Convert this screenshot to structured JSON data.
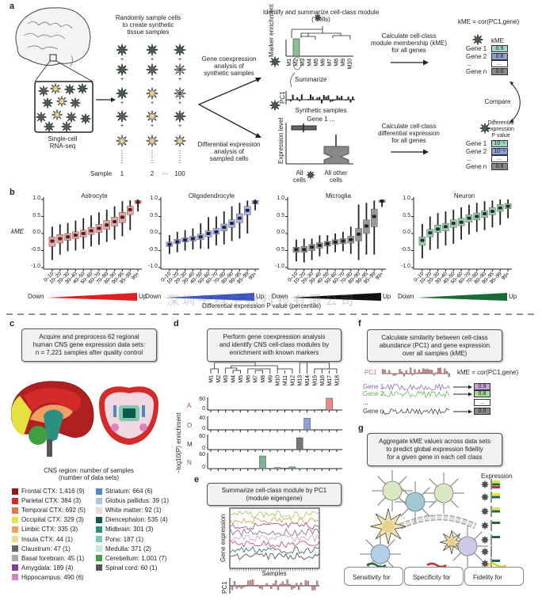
{
  "panel_labels": {
    "a": "a",
    "b": "b",
    "c": "c",
    "d": "d",
    "e": "e",
    "f": "f",
    "g": "g"
  },
  "panel_a": {
    "inset_label": [
      "Single-cell",
      "RNA-seq"
    ],
    "sample_title": [
      "Randomly sample cells",
      "to create synthetic",
      "tissue samples"
    ],
    "sample_row": {
      "label": "Sample",
      "s1": "1",
      "s2": "2",
      "dots": "···",
      "s3": "100"
    },
    "sample_columns": [
      [
        "astrocyte",
        "astrocyte",
        "astrocyte",
        "oligodendrocyte",
        "neuron"
      ],
      [
        "astrocyte",
        "oligodendrocyte",
        "neuron",
        "neuron",
        "neuron"
      ],
      [
        "astrocyte",
        "microglia",
        "microglia",
        "oligodendrocyte",
        "neuron"
      ]
    ],
    "coexpression_text": [
      "Gene coexpression",
      "analysis of",
      "synthetic samples"
    ],
    "diffexp_text": [
      "Differential expression",
      "analysis of",
      "sampled cells"
    ],
    "module_title": [
      "Identify and summarize cell-class module",
      "( cells)"
    ],
    "marker_ylabel": "Marker enrichment",
    "modules": [
      "M1",
      "M2",
      "M3",
      "M4",
      "M5",
      "M6",
      "M7",
      "M8",
      "M9",
      "M10"
    ],
    "summarize": "Summarize",
    "pc1_label": "PC1",
    "synthetic_samples": "Synthetic samples",
    "gene1": "Gene 1 ...",
    "expression_ylabel": "Expression level",
    "all_cells": [
      "All",
      "cells"
    ],
    "all_other": [
      "All other",
      "cells"
    ],
    "kme_calc": [
      "Calculate cell-class",
      "module membership (kME)",
      "for all genes"
    ],
    "de_calc": [
      "Calculate cell-class",
      "differential expression",
      "for all genes"
    ],
    "kme_formula": "kME = cor(PC1,gene)",
    "kme_header": "kME",
    "kme_table": [
      {
        "gene": "Gene 1",
        "value": "0.9",
        "color": "#9fd6cf"
      },
      {
        "gene": "Gene 2",
        "value": "0.8",
        "color": "#8f9fd6"
      },
      {
        "gene": "...",
        "value": "...",
        "color": "#ffffff"
      },
      {
        "gene": "Gene n",
        "value": "0.0",
        "color": "#888888"
      }
    ],
    "compare": "Compare",
    "de_header": [
      "Differential",
      "expression",
      "P value"
    ],
    "p_table": [
      {
        "gene": "Gene 1",
        "value": "10⁻⁵",
        "color": "#9fd6cf"
      },
      {
        "gene": "Gene 2",
        "value": "10⁻⁴",
        "color": "#8f9fd6"
      },
      {
        "gene": "...",
        "value": "...",
        "color": "#ffffff"
      },
      {
        "gene": "Gene n",
        "value": "0.9",
        "color": "#888888"
      }
    ]
  },
  "chart_data": [
    {
      "type": "box",
      "title": "Astrocyte",
      "ylabel": "kME",
      "ylim": [
        -1,
        1
      ],
      "yticks": [
        "1.0",
        "0.5",
        "0.0",
        "-0.5",
        "-1.0"
      ],
      "categories": [
        "0–10",
        "10–20",
        "20–30",
        "30–40",
        "40–50",
        "50–60",
        "60–70",
        "70–80",
        "80–90",
        "90–95",
        "95–99",
        "99+"
      ],
      "color": "#e8a3a3",
      "median_color": "#5a1a1a",
      "gradient": "#e02020",
      "median": [
        -0.22,
        -0.15,
        -0.1,
        -0.05,
        0,
        0.08,
        0.15,
        0.25,
        0.35,
        0.48,
        0.7,
        0.92
      ],
      "q1": [
        -0.38,
        -0.28,
        -0.2,
        -0.15,
        -0.1,
        -0.03,
        0.03,
        0.12,
        0.22,
        0.32,
        0.55,
        0.88
      ],
      "q3": [
        -0.1,
        -0.03,
        0.0,
        0.05,
        0.1,
        0.18,
        0.27,
        0.38,
        0.48,
        0.62,
        0.8,
        0.97
      ],
      "min": [
        -0.78,
        -0.62,
        -0.52,
        -0.5,
        -0.45,
        -0.38,
        -0.33,
        -0.25,
        -0.18,
        -0.08,
        0.1,
        0.65
      ],
      "max": [
        0.2,
        0.27,
        0.31,
        0.38,
        0.45,
        0.53,
        0.62,
        0.7,
        0.8,
        0.95,
        0.98,
        1.0
      ]
    },
    {
      "type": "box",
      "title": "Oligodendrocyte",
      "ylim": [
        -1,
        1
      ],
      "yticks": [
        "1.0",
        "0.5",
        "0.0",
        "-0.5",
        "-1.0"
      ],
      "categories": [
        "0–10",
        "10–20",
        "20–30",
        "30–40",
        "40–50",
        "50–60",
        "60–70",
        "70–80",
        "80–90",
        "90–95",
        "95–99",
        "99+"
      ],
      "color": "#aab5e2",
      "median_color": "#1a2050",
      "gradient": "#3a55c0",
      "median": [
        -0.32,
        -0.24,
        -0.19,
        -0.15,
        -0.1,
        0,
        0.05,
        0.18,
        0.3,
        0.45,
        0.68,
        0.92
      ],
      "q1": [
        -0.38,
        -0.3,
        -0.25,
        -0.22,
        -0.18,
        -0.1,
        -0.02,
        0.08,
        0.18,
        0.32,
        0.55,
        0.87
      ],
      "q3": [
        -0.25,
        -0.17,
        -0.12,
        -0.08,
        -0.02,
        0.08,
        0.15,
        0.28,
        0.4,
        0.58,
        0.8,
        0.97
      ],
      "min": [
        -0.6,
        -0.55,
        -0.5,
        -0.47,
        -0.45,
        -0.45,
        -0.35,
        -0.32,
        -0.22,
        -0.15,
        0.0,
        0.68
      ],
      "max": [
        -0.05,
        0.05,
        0.1,
        0.15,
        0.3,
        0.48,
        0.5,
        0.65,
        0.8,
        0.9,
        0.97,
        1.0
      ]
    },
    {
      "type": "box",
      "title": "Microglia",
      "ylim": [
        -1,
        1
      ],
      "yticks": [
        "1.0",
        "0.5",
        "0.0",
        "-0.5",
        "-1.0"
      ],
      "categories": [
        "0–10",
        "10–20",
        "20–30",
        "30–40",
        "40–50",
        "50–60",
        "60–70",
        "70–80",
        "80–90",
        "90–95",
        "95–99",
        "99+"
      ],
      "color": "#9a9a9a",
      "median_color": "#222222",
      "gradient": "#111111",
      "median": [
        -0.47,
        -0.47,
        -0.4,
        -0.35,
        -0.3,
        -0.25,
        -0.22,
        -0.18,
        -0.02,
        0.22,
        0.5,
        0.95
      ],
      "q1": [
        -0.55,
        -0.55,
        -0.5,
        -0.43,
        -0.37,
        -0.32,
        -0.3,
        -0.28,
        -0.22,
        0.0,
        0.2,
        0.92
      ],
      "q3": [
        -0.4,
        -0.38,
        -0.32,
        -0.27,
        -0.23,
        -0.18,
        -0.15,
        -0.08,
        0.15,
        0.4,
        0.72,
        0.98
      ],
      "min": [
        -0.82,
        -0.85,
        -0.78,
        -0.67,
        -0.6,
        -0.55,
        -0.52,
        -0.6,
        -0.78,
        -0.62,
        -0.62,
        0.78
      ],
      "max": [
        -0.18,
        -0.15,
        -0.15,
        -0.05,
        -0.05,
        0.0,
        0.05,
        0.2,
        0.85,
        0.9,
        0.97,
        1.0
      ]
    },
    {
      "type": "box",
      "title": "Neuron",
      "ylim": [
        -1,
        1
      ],
      "yticks": [
        "1.0",
        "0.5",
        "0.0",
        "-0.5",
        "-1.0"
      ],
      "categories": [
        "0–10",
        "10–20",
        "20–30",
        "30–40",
        "40–50",
        "50–60",
        "60–70",
        "70–80",
        "80–90",
        "90–95",
        "95–99",
        "99+"
      ],
      "color": "#9fcbb0",
      "median_color": "#123a24",
      "gradient": "#1a6a3a",
      "median": [
        -0.2,
        0.02,
        0.13,
        0.2,
        0.3,
        0.33,
        0.45,
        0.5,
        0.58,
        0.65,
        0.75,
        0.8
      ],
      "q1": [
        -0.35,
        -0.1,
        0.03,
        0.08,
        0.18,
        0.23,
        0.33,
        0.4,
        0.47,
        0.55,
        0.65,
        0.73
      ],
      "q3": [
        -0.1,
        0.12,
        0.25,
        0.3,
        0.4,
        0.45,
        0.55,
        0.6,
        0.67,
        0.76,
        0.85,
        0.88
      ],
      "min": [
        -0.73,
        -0.48,
        -0.45,
        -0.35,
        -0.3,
        -0.18,
        -0.03,
        0.05,
        0.1,
        0.18,
        0.25,
        0.45
      ],
      "max": [
        0.28,
        0.5,
        0.6,
        0.65,
        0.7,
        0.77,
        0.85,
        0.9,
        0.95,
        0.97,
        1.0,
        1.0
      ]
    },
    {
      "type": "bar",
      "panel": "d",
      "ylabel": "−log10(P) enrichment",
      "categories": [
        "M1",
        "M2",
        "M3",
        "M4",
        "M5",
        "M6",
        "M7",
        "M8",
        "M9",
        "M10",
        "M11",
        "M12",
        "M13",
        "M14",
        "M15",
        "M16",
        "M17",
        "M18"
      ],
      "series": [
        {
          "name": "A",
          "color": "#e88a8a",
          "ymax": 60,
          "yticks": [
            "60",
            "0"
          ],
          "values": [
            0,
            0,
            0,
            0,
            0,
            0,
            0,
            0,
            0,
            0,
            0,
            0,
            0,
            0,
            0,
            3,
            75,
            0
          ]
        },
        {
          "name": "O",
          "color": "#8fa0d8",
          "ymax": 40,
          "yticks": [
            "40",
            "0"
          ],
          "values": [
            0,
            0,
            0,
            0,
            0,
            1,
            0,
            0,
            0,
            0,
            0,
            0,
            1,
            45,
            0,
            0,
            0,
            0
          ]
        },
        {
          "name": "M",
          "color": "#777777",
          "ymax": 60,
          "yticks": [
            "60",
            "0"
          ],
          "values": [
            0,
            0,
            0,
            0,
            0,
            0,
            0,
            0,
            0,
            0,
            0,
            0,
            60,
            2,
            0,
            0,
            0,
            0
          ]
        },
        {
          "name": "N",
          "color": "#7fb08f",
          "ymax": 60,
          "yticks": [
            "60",
            "0"
          ],
          "values": [
            1,
            0,
            0,
            0,
            1,
            0,
            0,
            60,
            0,
            5,
            3,
            8,
            1,
            0,
            0,
            0,
            0,
            0
          ]
        }
      ]
    }
  ],
  "panel_b": {
    "down": "Down",
    "up": "Up",
    "xlabel": "Differential expression P value (percentile)"
  },
  "panel_c": {
    "box": [
      "Acquire and preprocess 62 regional",
      "human CNS gene expression data sets:",
      "n = 7,221 samples after quality control"
    ],
    "legend_title": [
      "CNS region: number of samples",
      "(number of data sets)"
    ],
    "legend": [
      {
        "label": "Frontal CTX: 1,416 (9)",
        "color": "#8b1a1a"
      },
      {
        "label": "Parietal CTX: 384 (3)",
        "color": "#d42a2a"
      },
      {
        "label": "Temporal CTX: 692 (5)",
        "color": "#e8724a"
      },
      {
        "label": "Occipital CTX: 329 (3)",
        "color": "#e6e040"
      },
      {
        "label": "Limbic CTX: 335 (3)",
        "color": "#f0a060"
      },
      {
        "label": "Insula CTX: 44 (1)",
        "color": "#f5d890"
      },
      {
        "label": "Claustrum: 47 (1)",
        "color": "#666666"
      },
      {
        "label": "Basal forebrain: 45 (1)",
        "color": "#aaaaaa"
      },
      {
        "label": "Amygdala: 189 (4)",
        "color": "#8a3a9a"
      },
      {
        "label": "Hippocampus: 490 (6)",
        "color": "#e080c0"
      },
      {
        "label": "Striatum: 664 (6)",
        "color": "#4a8ac0"
      },
      {
        "label": "Globus pallidus: 39 (1)",
        "color": "#a0c8e0"
      },
      {
        "label": "White matter: 92 (1)",
        "color": "#f0d8e0"
      },
      {
        "label": "Diencephalon: 535 (4)",
        "color": "#0a5a50"
      },
      {
        "label": "Midbrain: 301 (3)",
        "color": "#2a9080"
      },
      {
        "label": "Pons: 187 (1)",
        "color": "#80c8b0"
      },
      {
        "label": "Medulla: 371 (2)",
        "color": "#c0e8d8"
      },
      {
        "label": "Cerebellum: 1,001 (7)",
        "color": "#40a040"
      },
      {
        "label": "Spinal cord: 60 (1)",
        "color": "#555555"
      }
    ]
  },
  "panel_d": {
    "box": [
      "Perform gene coexpression analysis",
      "and identify CNS cell-class modules by",
      "enrichment with known markers"
    ]
  },
  "panel_e": {
    "box": [
      "Summarize cell-class module by PC1",
      "(module eigengene)"
    ],
    "ylabel": "Gene expression",
    "xlabel": "Samples",
    "pc1": "PC1"
  },
  "panel_f": {
    "box": [
      "Calculate similarity between cell-class",
      "abundance (PC1) and gene expression",
      "over all samples (kME)"
    ],
    "pc1": "PC1",
    "formula": "kME = cor(PC1,gene)",
    "rows": [
      {
        "gene": "Gene 1",
        "value": "0.9",
        "color": "#c7a0d8",
        "line": "#8a5ab0"
      },
      {
        "gene": "Gene 2",
        "value": "0.8",
        "color": "#a8d8a0",
        "line": "#5ab050"
      },
      {
        "gene": "...",
        "value": "...",
        "color": "#ffffff",
        "line": ""
      },
      {
        "gene": "Gene n",
        "value": "0.0",
        "color": "#888888",
        "line": "#333333"
      }
    ]
  },
  "panel_g": {
    "box": [
      "Aggregate kME values across data sets",
      "to predict global expression fidelity",
      "for a given gene in each cell class"
    ],
    "expression": "Expression",
    "buttons": [
      "Sensitivity for",
      "Specificity for",
      "Fidelity for"
    ]
  },
  "watermark": "深圳子科生物科技有限公司"
}
